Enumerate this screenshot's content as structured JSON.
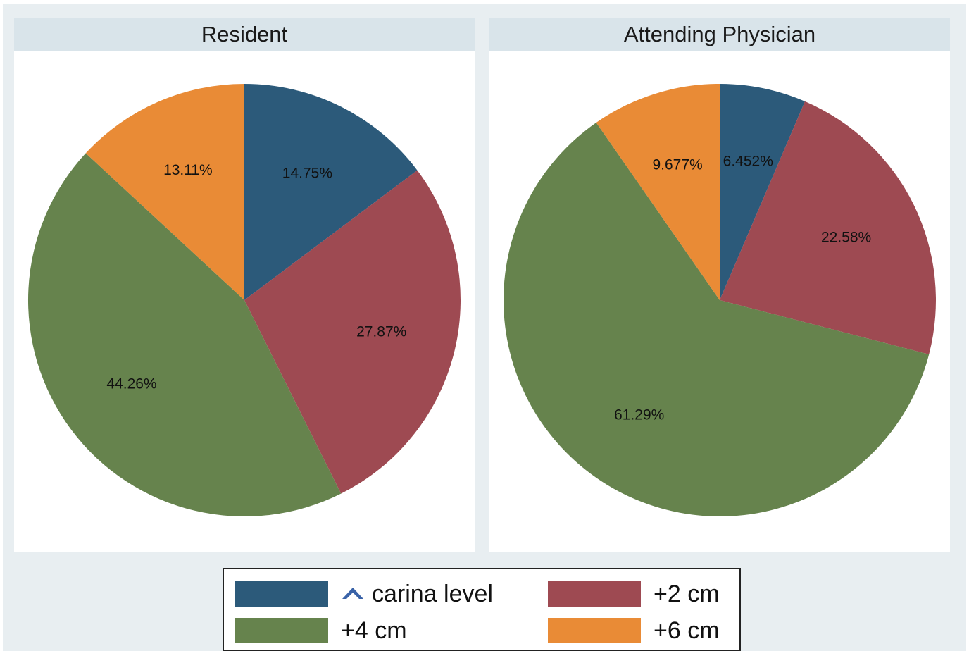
{
  "chart_data": [
    {
      "type": "pie",
      "title": "Resident",
      "categories": [
        "carina level",
        "+2 cm",
        "+4 cm",
        "+6 cm"
      ],
      "values": [
        14.75,
        27.87,
        44.26,
        13.11
      ],
      "labels": [
        "14.75%",
        "27.87%",
        "44.26%",
        "13.11%"
      ],
      "colors": [
        "#2c5a7a",
        "#9e4a52",
        "#66834d",
        "#e98b36"
      ],
      "start_angle": "12 o'clock",
      "direction": "clockwise"
    },
    {
      "type": "pie",
      "title": "Attending Physician",
      "categories": [
        "carina level",
        "+2 cm",
        "+4 cm",
        "+6 cm"
      ],
      "values": [
        6.452,
        22.58,
        61.29,
        9.677
      ],
      "labels": [
        "6.452%",
        "22.58%",
        "61.29%",
        "9.677%"
      ],
      "colors": [
        "#2c5a7a",
        "#9e4a52",
        "#66834d",
        "#e98b36"
      ],
      "start_angle": "12 o'clock",
      "direction": "clockwise"
    }
  ],
  "legend": {
    "placement": "bottom",
    "items": [
      {
        "label": "carina level",
        "color": "#2c5a7a",
        "glyph": "chevron-up-icon"
      },
      {
        "label": "+2 cm",
        "color": "#9e4a52"
      },
      {
        "label": "+4 cm",
        "color": "#66834d"
      },
      {
        "label": "+6 cm",
        "color": "#e98b36"
      }
    ]
  }
}
